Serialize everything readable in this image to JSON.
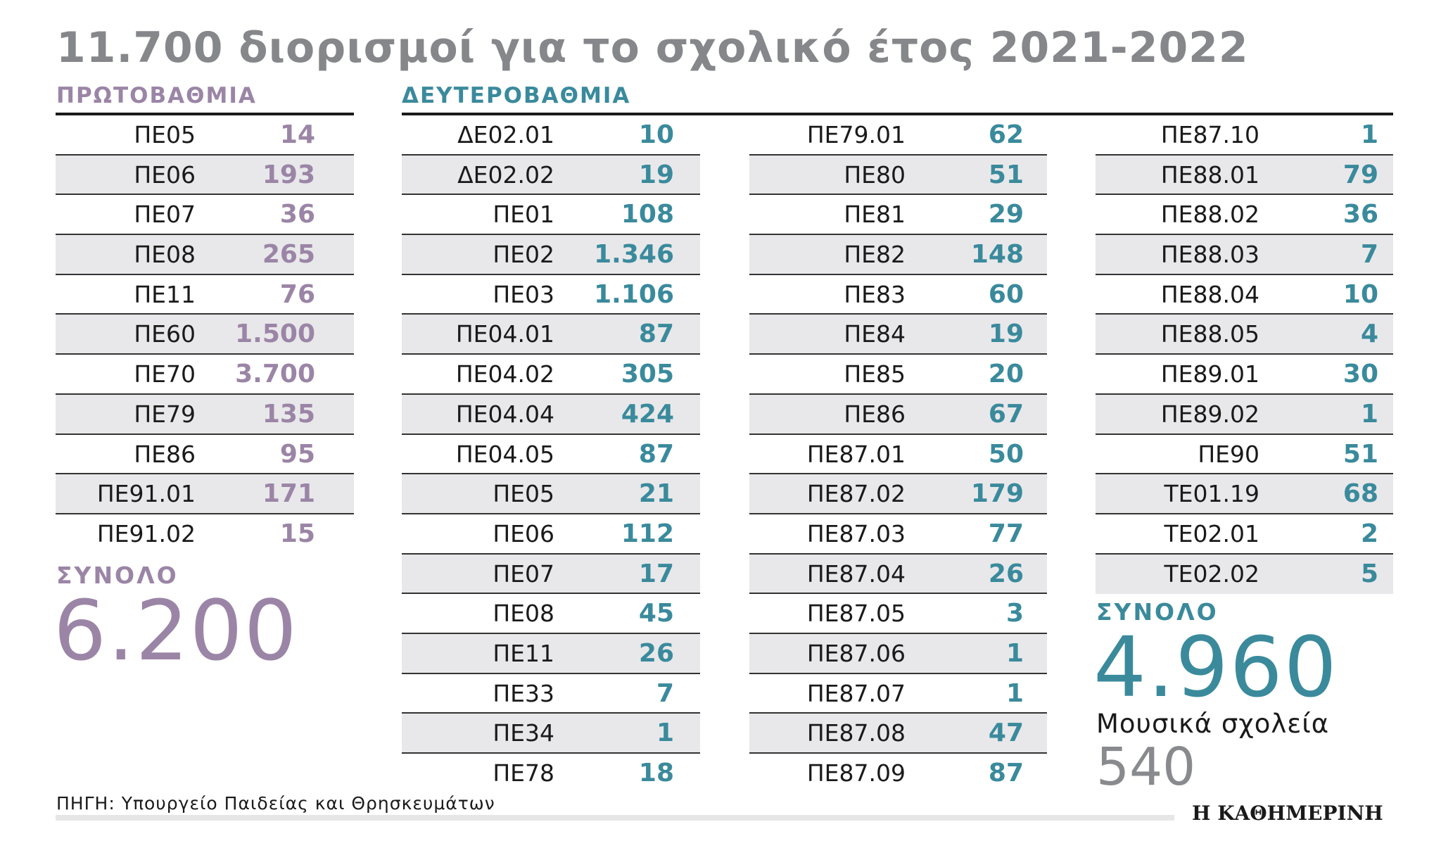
{
  "title": "11.700 διορισμοί για το σχολικό έτος  2021-2022",
  "colors": {
    "primary": "#9b85a6",
    "secondary": "#3a8a9c",
    "title": "#85878a",
    "row_shade": "#e8e8ea"
  },
  "primary": {
    "heading": "ΠΡΩΤΟΒΑΘΜΙΑ",
    "rows": [
      {
        "label": "ΠΕ05",
        "value": "14"
      },
      {
        "label": "ΠΕ06",
        "value": "193"
      },
      {
        "label": "ΠΕ07",
        "value": "36"
      },
      {
        "label": "ΠΕ08",
        "value": "265"
      },
      {
        "label": "ΠΕ11",
        "value": "76"
      },
      {
        "label": "ΠΕ60",
        "value": "1.500"
      },
      {
        "label": "ΠΕ70",
        "value": "3.700"
      },
      {
        "label": "ΠΕ79",
        "value": "135"
      },
      {
        "label": "ΠΕ86",
        "value": "95"
      },
      {
        "label": "ΠΕ91.01",
        "value": "171"
      },
      {
        "label": "ΠΕ91.02",
        "value": "15"
      }
    ],
    "total_label": "ΣΥΝΟΛΟ",
    "total_value": "6.200"
  },
  "secondary": {
    "heading": "ΔΕΥΤΕΡΟΒΑΘΜΙΑ",
    "columns": [
      [
        {
          "label": "ΔΕ02.01",
          "value": "10"
        },
        {
          "label": "ΔΕ02.02",
          "value": "19"
        },
        {
          "label": "ΠΕ01",
          "value": "108"
        },
        {
          "label": "ΠΕ02",
          "value": "1.346"
        },
        {
          "label": "ΠΕ03",
          "value": "1.106"
        },
        {
          "label": "ΠΕ04.01",
          "value": "87"
        },
        {
          "label": "ΠΕ04.02",
          "value": "305"
        },
        {
          "label": "ΠΕ04.04",
          "value": "424"
        },
        {
          "label": "ΠΕ04.05",
          "value": "87"
        },
        {
          "label": "ΠΕ05",
          "value": "21"
        },
        {
          "label": "ΠΕ06",
          "value": "112"
        },
        {
          "label": "ΠΕ07",
          "value": "17"
        },
        {
          "label": "ΠΕ08",
          "value": "45"
        },
        {
          "label": "ΠΕ11",
          "value": "26"
        },
        {
          "label": "ΠΕ33",
          "value": "7"
        },
        {
          "label": "ΠΕ34",
          "value": "1"
        },
        {
          "label": "ΠΕ78",
          "value": "18"
        }
      ],
      [
        {
          "label": "ΠΕ79.01",
          "value": "62"
        },
        {
          "label": "ΠΕ80",
          "value": "51"
        },
        {
          "label": "ΠΕ81",
          "value": "29"
        },
        {
          "label": "ΠΕ82",
          "value": "148"
        },
        {
          "label": "ΠΕ83",
          "value": "60"
        },
        {
          "label": "ΠΕ84",
          "value": "19"
        },
        {
          "label": "ΠΕ85",
          "value": "20"
        },
        {
          "label": "ΠΕ86",
          "value": "67"
        },
        {
          "label": "ΠΕ87.01",
          "value": "50"
        },
        {
          "label": "ΠΕ87.02",
          "value": "179"
        },
        {
          "label": "ΠΕ87.03",
          "value": "77"
        },
        {
          "label": "ΠΕ87.04",
          "value": "26"
        },
        {
          "label": "ΠΕ87.05",
          "value": "3"
        },
        {
          "label": "ΠΕ87.06",
          "value": "1"
        },
        {
          "label": "ΠΕ87.07",
          "value": "1"
        },
        {
          "label": "ΠΕ87.08",
          "value": "47"
        },
        {
          "label": "ΠΕ87.09",
          "value": "87"
        }
      ],
      [
        {
          "label": "ΠΕ87.10",
          "value": "1"
        },
        {
          "label": "ΠΕ88.01",
          "value": "79"
        },
        {
          "label": "ΠΕ88.02",
          "value": "36"
        },
        {
          "label": "ΠΕ88.03",
          "value": "7"
        },
        {
          "label": "ΠΕ88.04",
          "value": "10"
        },
        {
          "label": "ΠΕ88.05",
          "value": "4"
        },
        {
          "label": "ΠΕ89.01",
          "value": "30"
        },
        {
          "label": "ΠΕ89.02",
          "value": "1"
        },
        {
          "label": "ΠΕ90",
          "value": "51"
        },
        {
          "label": "ΤΕ01.19",
          "value": "68"
        },
        {
          "label": "ΤΕ02.01",
          "value": "2"
        },
        {
          "label": "ΤΕ02.02",
          "value": "5"
        }
      ]
    ],
    "total_label": "ΣΥΝΟΛΟ",
    "total_value": "4.960",
    "music_label": "Μουσικά σχολεία",
    "music_value": "540"
  },
  "source": "ΠΗΓΗ: Υπουργείο Παιδείας και Θρησκευμάτων",
  "logo": "Η ΚΑΘΗΜΕΡΙΝΗ"
}
